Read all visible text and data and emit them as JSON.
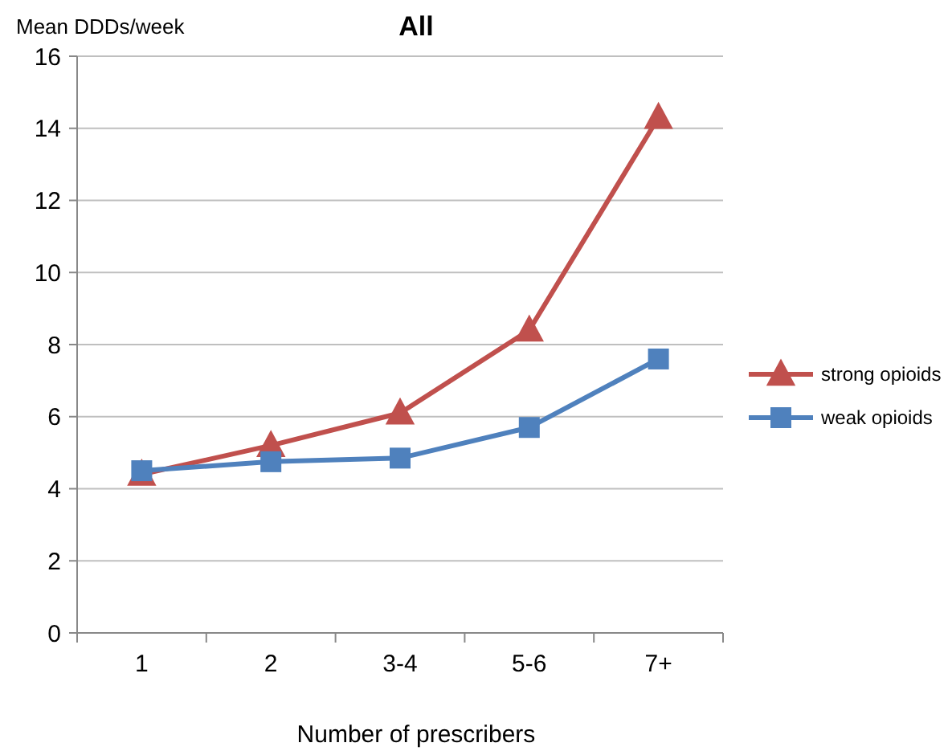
{
  "chart_data": {
    "type": "line",
    "title": "All",
    "xlabel": "Number of prescribers",
    "ylabel": "Mean DDDs/week",
    "categories": [
      "1",
      "2",
      "3-4",
      "5-6",
      "7+"
    ],
    "series": [
      {
        "name": "strong opioids",
        "color": "#c0504d",
        "marker": "triangle",
        "values": [
          4.4,
          5.2,
          6.1,
          8.4,
          14.3
        ]
      },
      {
        "name": "weak opioids",
        "color": "#4f81bd",
        "marker": "square",
        "values": [
          4.5,
          4.75,
          4.85,
          5.7,
          7.6
        ]
      }
    ],
    "ylim": [
      0,
      16
    ],
    "yticks": [
      0,
      2,
      4,
      6,
      8,
      10,
      12,
      14,
      16
    ],
    "grid": "y",
    "legend": "right",
    "line_style": "solid"
  }
}
